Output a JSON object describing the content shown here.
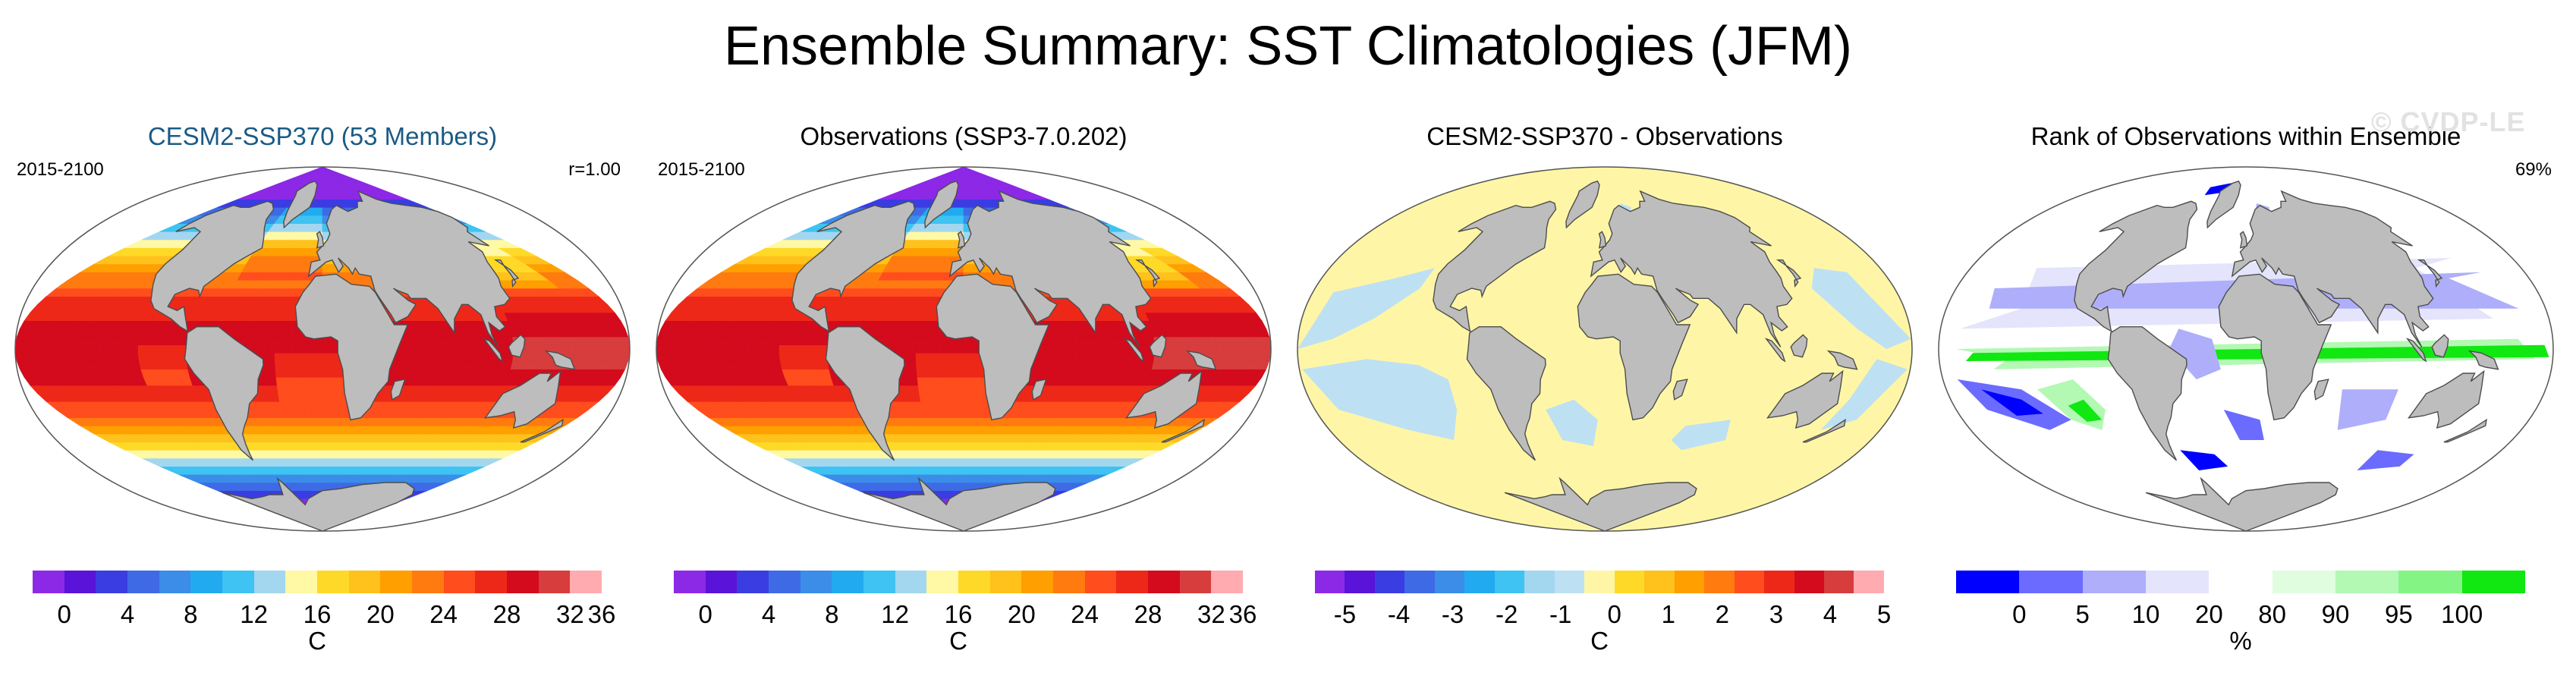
{
  "title": "Ensemble Summary: SST Climatologies (JFM)",
  "watermark": "© CVDP-LE",
  "colors": {
    "land": "#bdbdbd",
    "coast": "#4d4d4d",
    "ocean_white": "#ffffff",
    "diff_pos": "#fef6a6",
    "diff_neg": "#bde0f3"
  },
  "temp_palette": [
    "#8c29e6",
    "#5a13d8",
    "#3a3de2",
    "#3e6ae6",
    "#3b8de8",
    "#22aaf0",
    "#3ec3f2",
    "#a3d6ef",
    "#fff8a5",
    "#ffd928",
    "#ffc11c",
    "#ff9f00",
    "#ff7b10",
    "#ff4d1e",
    "#ee2818",
    "#d30b1d",
    "#d73d3d",
    "#ffabb0"
  ],
  "diff_palette": [
    "#8c29e6",
    "#5a13d8",
    "#3a3de2",
    "#3e6ae6",
    "#3b8de8",
    "#22aaf0",
    "#3ec3f2",
    "#a3d6ef",
    "#bde0f3",
    "#fef6a6",
    "#ffd928",
    "#ffc11c",
    "#ff9f00",
    "#ff7b10",
    "#ff4d1e",
    "#ee2818",
    "#d30b1d",
    "#d73d3d",
    "#ffabb0"
  ],
  "rank_palette": [
    "#0000ff",
    "#6b6bff",
    "#aeaefb",
    "#e4e4fc",
    "#ffffff",
    "#e0fde0",
    "#b3f8b3",
    "#84f584",
    "#11e711"
  ],
  "panels": [
    {
      "id": "cesm",
      "title": "CESM2-SSP370 (53 Members)",
      "title_color": "#1a5b85",
      "left_label": "2015-2100",
      "right_label": "r=1.00",
      "map_type": "temp",
      "colorbar": {
        "ticks": [
          "0",
          "4",
          "8",
          "12",
          "16",
          "20",
          "24",
          "28",
          "32",
          "36"
        ],
        "unit": "C"
      }
    },
    {
      "id": "obs",
      "title": "Observations (SSP3-7.0.202)",
      "title_color": "#000000",
      "left_label": "2015-2100",
      "right_label": "",
      "map_type": "temp",
      "colorbar": {
        "ticks": [
          "0",
          "4",
          "8",
          "12",
          "16",
          "20",
          "24",
          "28",
          "32",
          "36"
        ],
        "unit": "C"
      }
    },
    {
      "id": "diff",
      "title": "CESM2-SSP370 - Observations",
      "title_color": "#000000",
      "left_label": "",
      "right_label": "",
      "map_type": "diff",
      "colorbar": {
        "ticks": [
          "-5",
          "-4",
          "-3",
          "-2",
          "-1",
          "0",
          "1",
          "2",
          "3",
          "4",
          "5"
        ],
        "unit": "C"
      }
    },
    {
      "id": "rank",
      "title": "Rank of Observations within Ensemble",
      "title_color": "#000000",
      "left_label": "",
      "right_label": "69%",
      "map_type": "rank",
      "colorbar": {
        "ticks": [
          "0",
          "5",
          "10",
          "20",
          "80",
          "90",
          "95",
          "100"
        ],
        "unit": "%"
      }
    }
  ]
}
